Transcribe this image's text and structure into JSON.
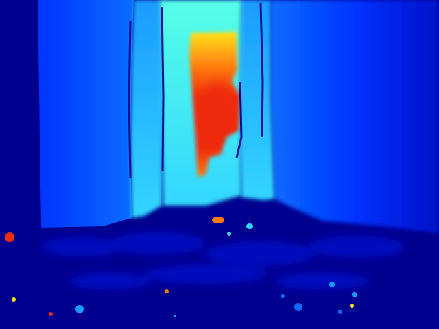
{
  "image": {
    "kind": "depth-map",
    "colormap": "jet",
    "palette": {
      "far": "#00008f",
      "deep_blue": "#0010c8",
      "blue": "#0033ff",
      "mid_blue": "#0a6cff",
      "light_blue": "#1a9bff",
      "cyan": "#33d6ff",
      "aqua": "#55ffe6",
      "yellow": "#ffe21a",
      "orange": "#ff7a10",
      "red": "#ee2a10"
    }
  }
}
